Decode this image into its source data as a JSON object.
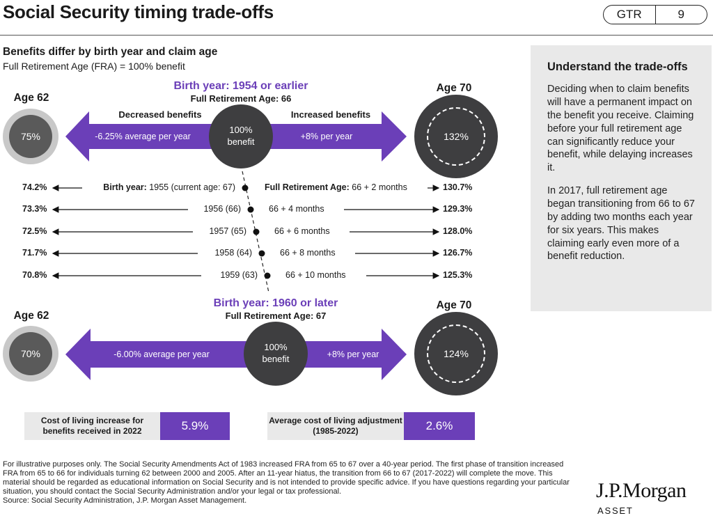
{
  "header": {
    "title": "Social Security timing trade-offs",
    "badge_left": "GTR",
    "badge_right": "9"
  },
  "subtitle": {
    "line1": "Benefits differ by birth year and claim age",
    "line2": "Full Retirement Age (FRA) = 100% benefit"
  },
  "section1": {
    "birth_year": "Birth year: 1954 or earlier",
    "fra": "Full Retirement Age: 66",
    "age_left": "Age 62",
    "age_right": "Age 70",
    "decreased_label": "Decreased benefits",
    "increased_label": "Increased benefits",
    "left_pct": "75%",
    "left_arrow_text": "-6.25% average per year",
    "center_line1": "100%",
    "center_line2": "benefit",
    "right_arrow_text": "+8% per year",
    "right_pct": "132%"
  },
  "rows": [
    {
      "left": "74.2%",
      "year_bold": "Birth year:",
      "year": " 1955 (current age: 67)",
      "fra_bold": "Full Retirement Age:",
      "fra": " 66 + 2 months",
      "right": "130.7%"
    },
    {
      "left": "73.3%",
      "year_bold": "",
      "year": "1956 (66)",
      "fra_bold": "",
      "fra": "66 + 4 months",
      "right": "129.3%"
    },
    {
      "left": "72.5%",
      "year_bold": "",
      "year": "1957 (65)",
      "fra_bold": "",
      "fra": "66 + 6 months",
      "right": "128.0%"
    },
    {
      "left": "71.7%",
      "year_bold": "",
      "year": "1958 (64)",
      "fra_bold": "",
      "fra": "66 + 8 months",
      "right": "126.7%"
    },
    {
      "left": "70.8%",
      "year_bold": "",
      "year": "1959 (63)",
      "fra_bold": "",
      "fra": "66 + 10 months",
      "right": "125.3%"
    }
  ],
  "section2": {
    "birth_year": "Birth year: 1960 or later",
    "fra": "Full Retirement Age: 67",
    "age_left": "Age 62",
    "age_right": "Age 70",
    "left_pct": "70%",
    "left_arrow_text": "-6.00% average per year",
    "center_line1": "100%",
    "center_line2": "benefit",
    "right_arrow_text": "+8% per year",
    "right_pct": "124%"
  },
  "stats": {
    "cola_label": "Cost of living increase for benefits received in 2022",
    "cola_value": "5.9%",
    "avg_label": "Average cost of living adjustment (1985-2022)",
    "avg_value": "2.6%"
  },
  "sidebar": {
    "heading": "Understand the trade-offs",
    "para1": "Deciding when to claim benefits will have a permanent impact on the benefit you receive. Claiming before your full retirement age can significantly reduce your benefit, while delaying increases it.",
    "para2": "In 2017, full retirement age began transitioning from 66 to 67 by adding two months each year for six years. This makes claiming early even more of a benefit reduction."
  },
  "footer": {
    "disclaimer": "For illustrative purposes only. The Social Security Amendments Act of 1983 increased FRA from 65 to 67 over a 40-year period. The first phase of transition increased FRA from 65 to 66 for individuals turning 62 between 2000 and 2005. After an 11-year hiatus, the transition from 66 to 67 (2017-2022) will complete the move. This material should be regarded as educational information on Social Security and is not intended to provide specific advice. If you have questions regarding your particular situation, you should contact the Social Security Administration and/or your legal or tax professional.",
    "source": "Source: Social Security Administration, J.P. Morgan Asset Management.",
    "logo": "J.P.Morgan",
    "logo_sub": "ASSET MANAGEMENT"
  },
  "colors": {
    "purple": "#6b3fb8",
    "dark_grey": "#3e3e40",
    "light_grey": "#e9e9e9"
  }
}
